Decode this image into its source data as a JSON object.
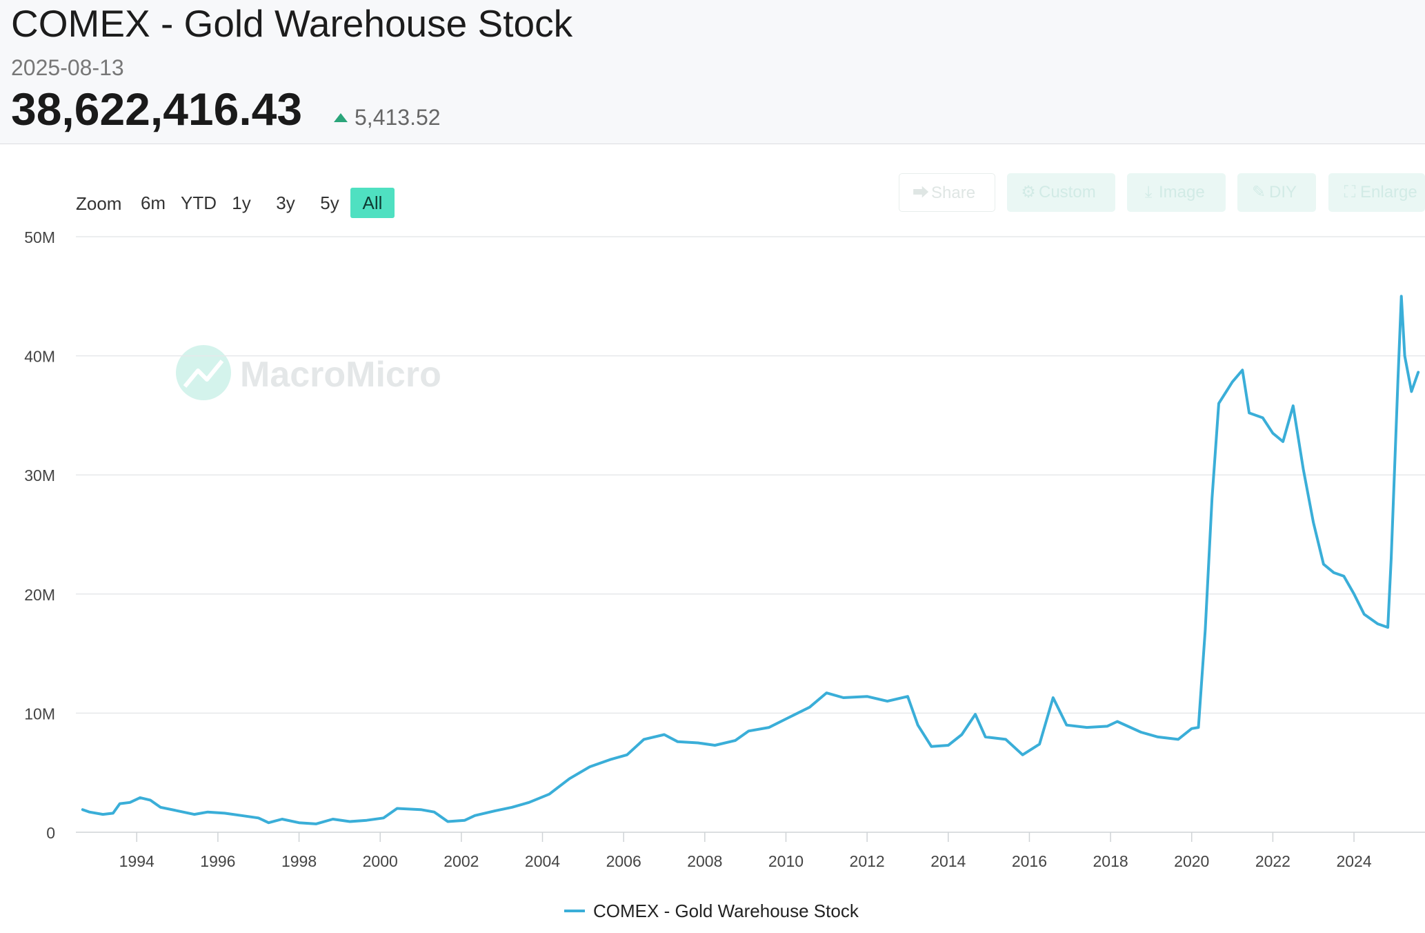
{
  "header": {
    "title": "COMEX - Gold Warehouse Stock",
    "date": "2025-08-13",
    "value": "38,622,416.43",
    "change": "5,413.52",
    "change_color": "#2aa57a"
  },
  "range_selector": {
    "label": "Zoom",
    "buttons": [
      "6m",
      "YTD",
      "1y",
      "3y",
      "5y",
      "All"
    ],
    "active": "All"
  },
  "toolbar": {
    "share": "Share",
    "custom": "Custom",
    "image": "Image",
    "diy": "DIY",
    "enlarge": "Enlarge"
  },
  "watermark": "MacroMicro",
  "chart_data": {
    "type": "line",
    "title": "COMEX - Gold Warehouse Stock",
    "xlabel": "",
    "ylabel": "",
    "ylim": [
      0,
      50000000
    ],
    "xlim": [
      "1992-07",
      "2025-10"
    ],
    "y_ticks": [
      0,
      10000000,
      20000000,
      30000000,
      40000000,
      50000000
    ],
    "y_tick_labels": [
      "0",
      "10M",
      "20M",
      "30M",
      "40M",
      "50M"
    ],
    "x_ticks": [
      1994,
      1996,
      1998,
      2000,
      2002,
      2004,
      2006,
      2008,
      2010,
      2012,
      2014,
      2016,
      2018,
      2020,
      2022,
      2024
    ],
    "x_tick_labels": [
      "1994",
      "1996",
      "1998",
      "2000",
      "2002",
      "2004",
      "2006",
      "2008",
      "2010",
      "2012",
      "2014",
      "2016",
      "2018",
      "2020",
      "2022",
      "2024"
    ],
    "grid": true,
    "legend": "bottom-center",
    "series": [
      {
        "name": "COMEX - Gold Warehouse Stock",
        "color": "#3aaed8",
        "points": [
          [
            "1992-09",
            1900000
          ],
          [
            "1992-11",
            1700000
          ],
          [
            "1993-03",
            1500000
          ],
          [
            "1993-06",
            1600000
          ],
          [
            "1993-08",
            2400000
          ],
          [
            "1993-11",
            2500000
          ],
          [
            "1994-02",
            2900000
          ],
          [
            "1994-05",
            2700000
          ],
          [
            "1994-08",
            2100000
          ],
          [
            "1995-01",
            1800000
          ],
          [
            "1995-06",
            1500000
          ],
          [
            "1995-10",
            1700000
          ],
          [
            "1996-03",
            1600000
          ],
          [
            "1996-08",
            1400000
          ],
          [
            "1997-01",
            1200000
          ],
          [
            "1997-04",
            800000
          ],
          [
            "1997-08",
            1100000
          ],
          [
            "1998-01",
            800000
          ],
          [
            "1998-06",
            700000
          ],
          [
            "1998-11",
            1100000
          ],
          [
            "1999-04",
            900000
          ],
          [
            "1999-09",
            1000000
          ],
          [
            "2000-02",
            1200000
          ],
          [
            "2000-06",
            2000000
          ],
          [
            "2001-01",
            1900000
          ],
          [
            "2001-05",
            1700000
          ],
          [
            "2001-09",
            900000
          ],
          [
            "2002-02",
            1000000
          ],
          [
            "2002-05",
            1400000
          ],
          [
            "2002-11",
            1800000
          ],
          [
            "2003-04",
            2100000
          ],
          [
            "2003-09",
            2500000
          ],
          [
            "2004-03",
            3200000
          ],
          [
            "2004-09",
            4500000
          ],
          [
            "2005-03",
            5500000
          ],
          [
            "2005-09",
            6100000
          ],
          [
            "2006-02",
            6500000
          ],
          [
            "2006-07",
            7800000
          ],
          [
            "2007-01",
            8200000
          ],
          [
            "2007-05",
            7600000
          ],
          [
            "2007-11",
            7500000
          ],
          [
            "2008-04",
            7300000
          ],
          [
            "2008-10",
            7700000
          ],
          [
            "2009-02",
            8500000
          ],
          [
            "2009-08",
            8800000
          ],
          [
            "2010-03",
            9800000
          ],
          [
            "2010-08",
            10500000
          ],
          [
            "2011-01",
            11700000
          ],
          [
            "2011-06",
            11300000
          ],
          [
            "2012-01",
            11400000
          ],
          [
            "2012-07",
            11000000
          ],
          [
            "2013-01",
            11400000
          ],
          [
            "2013-04",
            9000000
          ],
          [
            "2013-08",
            7200000
          ],
          [
            "2014-01",
            7300000
          ],
          [
            "2014-05",
            8200000
          ],
          [
            "2014-09",
            9900000
          ],
          [
            "2014-12",
            8000000
          ],
          [
            "2015-06",
            7800000
          ],
          [
            "2015-11",
            6500000
          ],
          [
            "2016-04",
            7400000
          ],
          [
            "2016-08",
            11300000
          ],
          [
            "2016-12",
            9000000
          ],
          [
            "2017-06",
            8800000
          ],
          [
            "2017-12",
            8900000
          ],
          [
            "2018-03",
            9300000
          ],
          [
            "2018-10",
            8400000
          ],
          [
            "2019-03",
            8000000
          ],
          [
            "2019-09",
            7800000
          ],
          [
            "2020-01",
            8700000
          ],
          [
            "2020-03",
            8800000
          ],
          [
            "2020-05",
            17000000
          ],
          [
            "2020-07",
            28000000
          ],
          [
            "2020-09",
            36000000
          ],
          [
            "2021-01",
            37800000
          ],
          [
            "2021-04",
            38800000
          ],
          [
            "2021-06",
            35200000
          ],
          [
            "2021-10",
            34800000
          ],
          [
            "2022-01",
            33500000
          ],
          [
            "2022-04",
            32800000
          ],
          [
            "2022-07",
            35800000
          ],
          [
            "2022-10",
            30500000
          ],
          [
            "2023-01",
            26000000
          ],
          [
            "2023-04",
            22500000
          ],
          [
            "2023-07",
            21800000
          ],
          [
            "2023-10",
            21500000
          ],
          [
            "2024-01",
            20000000
          ],
          [
            "2024-04",
            18300000
          ],
          [
            "2024-08",
            17500000
          ],
          [
            "2024-11",
            17200000
          ],
          [
            "2024-12",
            23000000
          ],
          [
            "2025-02",
            38000000
          ],
          [
            "2025-03",
            45000000
          ],
          [
            "2025-04",
            40000000
          ],
          [
            "2025-06",
            37000000
          ],
          [
            "2025-08",
            38622416
          ]
        ]
      }
    ]
  }
}
